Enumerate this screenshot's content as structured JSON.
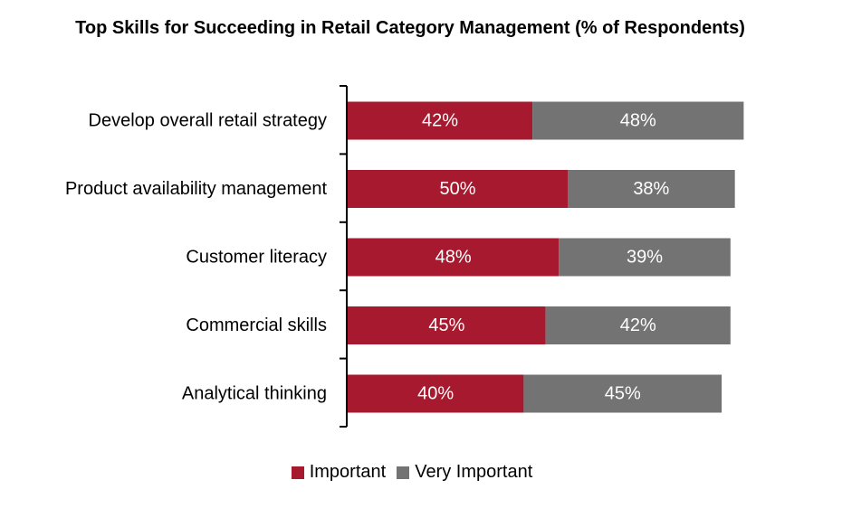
{
  "chart_data": {
    "type": "bar",
    "orientation": "horizontal",
    "stacked": true,
    "title": "Top Skills for Succeeding in Retail Category Management (% of Respondents)",
    "categories": [
      "Develop overall retail strategy",
      "Product availability management",
      "Customer literacy",
      "Commercial skills",
      "Analytical thinking"
    ],
    "series": [
      {
        "name": "Important",
        "values": [
          42,
          50,
          48,
          45,
          40
        ],
        "color": "#a6192e"
      },
      {
        "name": "Very Important",
        "values": [
          48,
          38,
          39,
          42,
          45
        ],
        "color": "#737373"
      }
    ],
    "value_suffix": "%",
    "xlim": [
      0,
      100
    ],
    "grid": false,
    "legend_position": "bottom"
  }
}
